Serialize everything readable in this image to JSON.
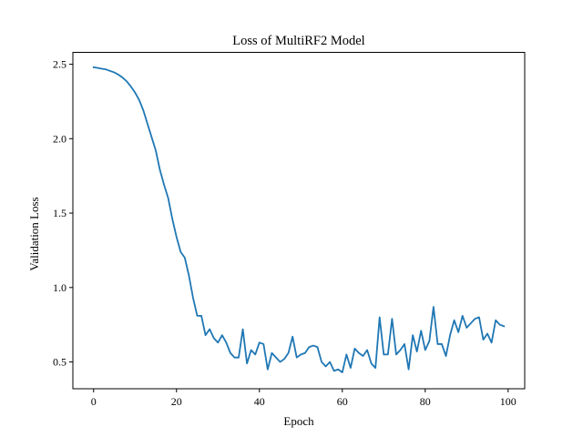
{
  "chart_data": {
    "type": "line",
    "title": "Loss of MultiRF2 Model",
    "xlabel": "Epoch",
    "ylabel": "Validation Loss",
    "xlim": [
      -5,
      104
    ],
    "ylim": [
      0.32,
      2.58
    ],
    "xticks": [
      0,
      20,
      40,
      60,
      80,
      100
    ],
    "yticks": [
      0.5,
      1.0,
      1.5,
      2.0,
      2.5
    ],
    "xtick_labels": [
      "0",
      "20",
      "40",
      "60",
      "80",
      "100"
    ],
    "ytick_labels": [
      "0.5",
      "1.0",
      "1.5",
      "2.0",
      "2.5"
    ],
    "grid": false,
    "series": [
      {
        "name": "Validation Loss",
        "color": "#1f77b4",
        "x": [
          0,
          1,
          2,
          3,
          4,
          5,
          6,
          7,
          8,
          9,
          10,
          11,
          12,
          13,
          14,
          15,
          16,
          17,
          18,
          19,
          20,
          21,
          22,
          23,
          24,
          25,
          26,
          27,
          28,
          29,
          30,
          31,
          32,
          33,
          34,
          35,
          36,
          37,
          38,
          39,
          40,
          41,
          42,
          43,
          44,
          45,
          46,
          47,
          48,
          49,
          50,
          51,
          52,
          53,
          54,
          55,
          56,
          57,
          58,
          59,
          60,
          61,
          62,
          63,
          64,
          65,
          66,
          67,
          68,
          69,
          70,
          71,
          72,
          73,
          74,
          75,
          76,
          77,
          78,
          79,
          80,
          81,
          82,
          83,
          84,
          85,
          86,
          87,
          88,
          89,
          90,
          91,
          92,
          93,
          94,
          95,
          96,
          97,
          98,
          99
        ],
        "values": [
          2.48,
          2.475,
          2.47,
          2.465,
          2.455,
          2.445,
          2.43,
          2.41,
          2.385,
          2.35,
          2.31,
          2.26,
          2.19,
          2.1,
          2.01,
          1.92,
          1.79,
          1.69,
          1.6,
          1.46,
          1.34,
          1.24,
          1.2,
          1.08,
          0.93,
          0.81,
          0.81,
          0.68,
          0.72,
          0.66,
          0.63,
          0.68,
          0.63,
          0.56,
          0.53,
          0.53,
          0.72,
          0.49,
          0.58,
          0.55,
          0.63,
          0.62,
          0.45,
          0.56,
          0.53,
          0.5,
          0.52,
          0.56,
          0.67,
          0.53,
          0.55,
          0.56,
          0.6,
          0.61,
          0.6,
          0.5,
          0.47,
          0.5,
          0.44,
          0.45,
          0.43,
          0.55,
          0.46,
          0.59,
          0.56,
          0.54,
          0.58,
          0.49,
          0.46,
          0.8,
          0.55,
          0.55,
          0.79,
          0.55,
          0.58,
          0.62,
          0.45,
          0.68,
          0.57,
          0.71,
          0.58,
          0.64,
          0.87,
          0.62,
          0.62,
          0.54,
          0.68,
          0.78,
          0.7,
          0.81,
          0.73,
          0.76,
          0.79,
          0.8,
          0.65,
          0.69,
          0.63,
          0.78,
          0.75,
          0.74
        ]
      }
    ]
  }
}
